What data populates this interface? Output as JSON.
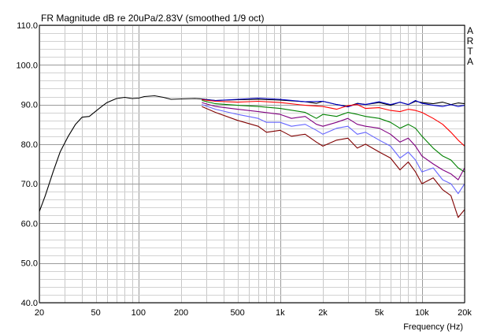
{
  "chart_data": {
    "type": "line",
    "title": "FR Magnitude dB re 20uPa/2.83V (smoothed 1/9 oct)",
    "xlabel": "Frequency (Hz)",
    "ylabel": "",
    "x_scale": "log",
    "xlim": [
      20,
      20000
    ],
    "ylim": [
      40,
      110
    ],
    "grid": true,
    "watermark": "ARTA",
    "x_tick_labels": [
      {
        "value": 20,
        "label": "20"
      },
      {
        "value": 50,
        "label": "50"
      },
      {
        "value": 100,
        "label": "100"
      },
      {
        "value": 200,
        "label": "200"
      },
      {
        "value": 500,
        "label": "500"
      },
      {
        "value": 1000,
        "label": "1k"
      },
      {
        "value": 2000,
        "label": "2k"
      },
      {
        "value": 5000,
        "label": "5k"
      },
      {
        "value": 10000,
        "label": "10k"
      },
      {
        "value": 20000,
        "label": "20k"
      }
    ],
    "y_tick_labels": [
      {
        "value": 40,
        "label": "40.0"
      },
      {
        "value": 50,
        "label": "50.0"
      },
      {
        "value": 60,
        "label": "60.0"
      },
      {
        "value": 70,
        "label": "70.0"
      },
      {
        "value": 80,
        "label": "80.0"
      },
      {
        "value": 90,
        "label": "90.0"
      },
      {
        "value": 100,
        "label": "100.0"
      },
      {
        "value": 110,
        "label": "110.0"
      }
    ],
    "series": [
      {
        "color": "#000000",
        "points": [
          [
            20,
            63
          ],
          [
            22,
            67
          ],
          [
            25,
            73
          ],
          [
            28,
            78
          ],
          [
            32,
            82
          ],
          [
            36,
            85
          ],
          [
            40,
            86.8
          ],
          [
            45,
            87
          ],
          [
            50,
            88.3
          ],
          [
            55,
            89.5
          ],
          [
            60,
            90.5
          ],
          [
            70,
            91.5
          ],
          [
            80,
            91.8
          ],
          [
            90,
            91.5
          ],
          [
            100,
            91.6
          ],
          [
            110,
            92
          ],
          [
            130,
            92.2
          ],
          [
            150,
            91.8
          ],
          [
            170,
            91.3
          ],
          [
            200,
            91.4
          ],
          [
            250,
            91.5
          ],
          [
            280,
            91.4
          ],
          [
            350,
            91
          ],
          [
            500,
            91.2
          ],
          [
            700,
            91.3
          ],
          [
            1000,
            91.1
          ],
          [
            1500,
            90.7
          ],
          [
            1800,
            90.3
          ],
          [
            2000,
            90.8
          ],
          [
            2500,
            90
          ],
          [
            3000,
            89.5
          ],
          [
            3500,
            90.3
          ],
          [
            4000,
            90
          ],
          [
            5000,
            90.5
          ],
          [
            6000,
            89.8
          ],
          [
            7000,
            90.6
          ],
          [
            8000,
            90
          ],
          [
            9000,
            90.8
          ],
          [
            10000,
            90.5
          ],
          [
            12000,
            90.2
          ],
          [
            14000,
            90.6
          ],
          [
            16000,
            90
          ],
          [
            18000,
            90.4
          ],
          [
            20000,
            90.2
          ]
        ]
      },
      {
        "color": "#0000cc",
        "points": [
          [
            280,
            91.3
          ],
          [
            350,
            91
          ],
          [
            500,
            91.3
          ],
          [
            700,
            91.6
          ],
          [
            1000,
            91.3
          ],
          [
            1500,
            90.7
          ],
          [
            2000,
            90.8
          ],
          [
            2500,
            90
          ],
          [
            3000,
            89.4
          ],
          [
            3500,
            90.2
          ],
          [
            4000,
            90
          ],
          [
            5000,
            90.7
          ],
          [
            6000,
            90
          ],
          [
            7000,
            90.6
          ],
          [
            8000,
            90
          ],
          [
            9000,
            91
          ],
          [
            10000,
            90.3
          ],
          [
            12000,
            89.8
          ],
          [
            14000,
            89.5
          ],
          [
            16000,
            90
          ],
          [
            18000,
            89.5
          ],
          [
            20000,
            89.8
          ]
        ]
      },
      {
        "color": "#ff0000",
        "points": [
          [
            280,
            91.2
          ],
          [
            350,
            90.8
          ],
          [
            500,
            90.6
          ],
          [
            700,
            90.8
          ],
          [
            1000,
            90.5
          ],
          [
            1500,
            89.8
          ],
          [
            2000,
            89.5
          ],
          [
            2500,
            88.8
          ],
          [
            3000,
            89.7
          ],
          [
            3500,
            90
          ],
          [
            4000,
            89
          ],
          [
            5000,
            89.2
          ],
          [
            6000,
            88.5
          ],
          [
            7000,
            88.2
          ],
          [
            8000,
            88.8
          ],
          [
            9000,
            88.5
          ],
          [
            10000,
            88
          ],
          [
            12000,
            86.5
          ],
          [
            14000,
            85
          ],
          [
            16000,
            83
          ],
          [
            18000,
            81
          ],
          [
            20000,
            79.5
          ]
        ]
      },
      {
        "color": "#008000",
        "points": [
          [
            280,
            91
          ],
          [
            350,
            90.2
          ],
          [
            500,
            89.8
          ],
          [
            700,
            89.5
          ],
          [
            1000,
            89
          ],
          [
            1500,
            88
          ],
          [
            1800,
            86.5
          ],
          [
            2000,
            87.5
          ],
          [
            2500,
            87
          ],
          [
            3000,
            88
          ],
          [
            3500,
            87.5
          ],
          [
            4000,
            87
          ],
          [
            5000,
            86.5
          ],
          [
            6000,
            85.5
          ],
          [
            7000,
            84
          ],
          [
            8000,
            85
          ],
          [
            9000,
            84
          ],
          [
            10000,
            82
          ],
          [
            12000,
            79
          ],
          [
            14000,
            77
          ],
          [
            16000,
            76
          ],
          [
            18000,
            74
          ],
          [
            20000,
            73
          ]
        ]
      },
      {
        "color": "#800080",
        "points": [
          [
            280,
            90.5
          ],
          [
            350,
            89.5
          ],
          [
            500,
            88.8
          ],
          [
            700,
            88.2
          ],
          [
            1000,
            87.5
          ],
          [
            1200,
            86.5
          ],
          [
            1500,
            87
          ],
          [
            1800,
            85
          ],
          [
            2000,
            84.5
          ],
          [
            2500,
            85.5
          ],
          [
            3000,
            86.5
          ],
          [
            3500,
            85
          ],
          [
            4000,
            84.5
          ],
          [
            5000,
            84
          ],
          [
            6000,
            82.5
          ],
          [
            7000,
            80.5
          ],
          [
            8000,
            81.5
          ],
          [
            9000,
            79.5
          ],
          [
            10000,
            77
          ],
          [
            12000,
            75
          ],
          [
            14000,
            73.5
          ],
          [
            16000,
            72.5
          ],
          [
            18000,
            71
          ],
          [
            20000,
            74
          ]
        ]
      },
      {
        "color": "#6666ff",
        "points": [
          [
            280,
            90
          ],
          [
            350,
            88.8
          ],
          [
            500,
            87.5
          ],
          [
            700,
            86.5
          ],
          [
            800,
            85.5
          ],
          [
            1000,
            85.5
          ],
          [
            1200,
            84.5
          ],
          [
            1500,
            85
          ],
          [
            1800,
            83.5
          ],
          [
            2000,
            82.5
          ],
          [
            2500,
            84
          ],
          [
            3000,
            84.5
          ],
          [
            3500,
            82.5
          ],
          [
            4000,
            83
          ],
          [
            5000,
            81
          ],
          [
            6000,
            79.5
          ],
          [
            7000,
            76.5
          ],
          [
            8000,
            78
          ],
          [
            9000,
            76
          ],
          [
            10000,
            73
          ],
          [
            12000,
            74
          ],
          [
            14000,
            71
          ],
          [
            16000,
            70
          ],
          [
            18000,
            67.5
          ],
          [
            20000,
            70
          ]
        ]
      },
      {
        "color": "#800000",
        "points": [
          [
            280,
            89.5
          ],
          [
            350,
            88
          ],
          [
            500,
            86
          ],
          [
            700,
            84.5
          ],
          [
            800,
            83
          ],
          [
            1000,
            83.5
          ],
          [
            1200,
            82
          ],
          [
            1500,
            82.5
          ],
          [
            1800,
            80.5
          ],
          [
            2000,
            79.5
          ],
          [
            2500,
            81
          ],
          [
            3000,
            81.5
          ],
          [
            3500,
            79
          ],
          [
            4000,
            80
          ],
          [
            5000,
            78
          ],
          [
            6000,
            76.5
          ],
          [
            7000,
            73.5
          ],
          [
            8000,
            75.5
          ],
          [
            9000,
            73
          ],
          [
            10000,
            70
          ],
          [
            12000,
            71.5
          ],
          [
            14000,
            68.5
          ],
          [
            16000,
            67
          ],
          [
            18000,
            61.5
          ],
          [
            20000,
            63.5
          ]
        ]
      }
    ]
  }
}
